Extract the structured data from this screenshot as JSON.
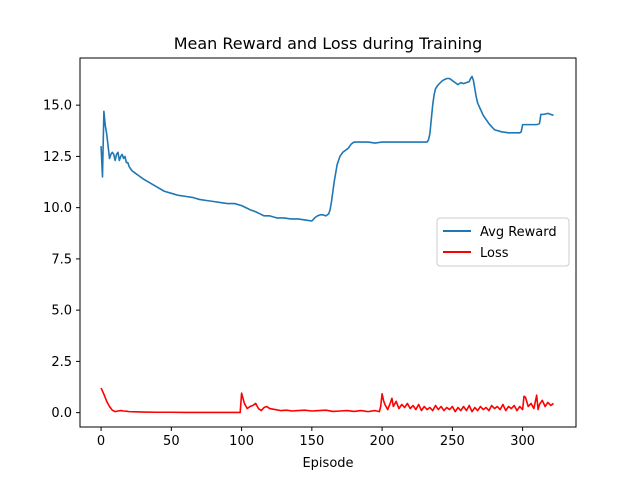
{
  "chart_data": {
    "type": "line",
    "title": "Mean Reward and Loss during Training",
    "xlabel": "Episode",
    "ylabel": "",
    "xlim": [
      -15,
      338
    ],
    "ylim": [
      -0.7,
      17.3
    ],
    "xticks": [
      0,
      50,
      100,
      150,
      200,
      250,
      300
    ],
    "yticks": [
      0.0,
      2.5,
      5.0,
      7.5,
      10.0,
      12.5,
      15.0
    ],
    "xtick_labels": [
      "0",
      "50",
      "100",
      "150",
      "200",
      "250",
      "300"
    ],
    "ytick_labels": [
      "0.0",
      "2.5",
      "5.0",
      "7.5",
      "10.0",
      "12.5",
      "15.0"
    ],
    "grid": false,
    "legend_position": "center-right",
    "series": [
      {
        "name": "Avg Reward",
        "color": "#1f77b4",
        "x": [
          0,
          1,
          2,
          3,
          4,
          5,
          6,
          7,
          8,
          9,
          10,
          11,
          12,
          13,
          14,
          15,
          16,
          17,
          18,
          19,
          20,
          22,
          24,
          26,
          28,
          30,
          35,
          40,
          45,
          50,
          55,
          60,
          65,
          70,
          75,
          80,
          85,
          90,
          95,
          100,
          103,
          106,
          110,
          113,
          116,
          120,
          125,
          130,
          135,
          140,
          145,
          150,
          152,
          154,
          156,
          158,
          160,
          162,
          163,
          164,
          165,
          166,
          167,
          168,
          170,
          172,
          174,
          176,
          178,
          180,
          185,
          190,
          195,
          200,
          205,
          210,
          215,
          220,
          225,
          230,
          232,
          233,
          234,
          235,
          236,
          237,
          238,
          240,
          243,
          246,
          248,
          250,
          252,
          254,
          256,
          258,
          260,
          262,
          263,
          264,
          265,
          266,
          267,
          268,
          270,
          272,
          274,
          276,
          278,
          280,
          285,
          290,
          295,
          298,
          299,
          300,
          305,
          310,
          312,
          313,
          315,
          318,
          320,
          322
        ],
        "y": [
          13.0,
          11.5,
          14.7,
          14.0,
          13.6,
          13.0,
          12.4,
          12.6,
          12.7,
          12.6,
          12.3,
          12.6,
          12.7,
          12.3,
          12.5,
          12.6,
          12.4,
          12.5,
          12.2,
          12.2,
          12.0,
          11.8,
          11.7,
          11.6,
          11.5,
          11.4,
          11.2,
          11.0,
          10.8,
          10.7,
          10.6,
          10.55,
          10.5,
          10.4,
          10.35,
          10.3,
          10.25,
          10.2,
          10.2,
          10.1,
          10.0,
          9.9,
          9.8,
          9.7,
          9.6,
          9.6,
          9.5,
          9.5,
          9.45,
          9.45,
          9.4,
          9.35,
          9.5,
          9.6,
          9.65,
          9.65,
          9.6,
          9.7,
          9.9,
          10.3,
          10.8,
          11.3,
          11.7,
          12.1,
          12.5,
          12.7,
          12.8,
          12.9,
          13.1,
          13.2,
          13.2,
          13.2,
          13.15,
          13.2,
          13.2,
          13.2,
          13.2,
          13.2,
          13.2,
          13.2,
          13.2,
          13.3,
          13.6,
          14.3,
          15.0,
          15.5,
          15.8,
          16.0,
          16.2,
          16.3,
          16.3,
          16.2,
          16.1,
          16.0,
          16.1,
          16.05,
          16.1,
          16.15,
          16.3,
          16.4,
          16.2,
          15.8,
          15.4,
          15.1,
          14.8,
          14.5,
          14.3,
          14.1,
          13.95,
          13.8,
          13.7,
          13.65,
          13.65,
          13.65,
          13.7,
          14.05,
          14.05,
          14.05,
          14.1,
          14.55,
          14.55,
          14.6,
          14.55,
          14.5
        ]
      },
      {
        "name": "Loss",
        "color": "#ff0000",
        "x": [
          0,
          2,
          4,
          6,
          8,
          10,
          12,
          14,
          16,
          18,
          20,
          25,
          30,
          40,
          50,
          60,
          70,
          80,
          90,
          99,
          100,
          101,
          102,
          104,
          106,
          108,
          110,
          112,
          114,
          116,
          118,
          120,
          124,
          128,
          132,
          136,
          140,
          145,
          150,
          155,
          160,
          165,
          170,
          175,
          180,
          185,
          190,
          195,
          198,
          199,
          200,
          201,
          202,
          204,
          206,
          207,
          208,
          210,
          212,
          214,
          216,
          218,
          220,
          222,
          224,
          226,
          228,
          230,
          232,
          234,
          236,
          238,
          240,
          242,
          244,
          246,
          248,
          250,
          252,
          254,
          256,
          258,
          260,
          262,
          264,
          266,
          268,
          270,
          272,
          274,
          276,
          278,
          280,
          282,
          284,
          286,
          288,
          290,
          292,
          294,
          296,
          298,
          300,
          301,
          302,
          304,
          306,
          308,
          310,
          311,
          312,
          314,
          316,
          318,
          320,
          322
        ],
        "y": [
          1.2,
          0.9,
          0.55,
          0.3,
          0.12,
          0.05,
          0.08,
          0.1,
          0.08,
          0.07,
          0.05,
          0.04,
          0.03,
          0.02,
          0.02,
          0.01,
          0.01,
          0.01,
          0.01,
          0.01,
          0.95,
          0.7,
          0.45,
          0.2,
          0.3,
          0.35,
          0.45,
          0.2,
          0.1,
          0.25,
          0.3,
          0.2,
          0.15,
          0.1,
          0.12,
          0.08,
          0.1,
          0.12,
          0.08,
          0.1,
          0.12,
          0.06,
          0.08,
          0.1,
          0.06,
          0.1,
          0.05,
          0.1,
          0.05,
          0.3,
          0.92,
          0.6,
          0.4,
          0.15,
          0.5,
          0.7,
          0.3,
          0.55,
          0.2,
          0.4,
          0.25,
          0.45,
          0.2,
          0.35,
          0.15,
          0.4,
          0.1,
          0.3,
          0.15,
          0.25,
          0.1,
          0.35,
          0.15,
          0.3,
          0.1,
          0.25,
          0.15,
          0.3,
          0.05,
          0.25,
          0.1,
          0.3,
          0.1,
          0.35,
          0.05,
          0.25,
          0.1,
          0.3,
          0.15,
          0.25,
          0.1,
          0.35,
          0.2,
          0.3,
          0.15,
          0.4,
          0.1,
          0.3,
          0.2,
          0.35,
          0.1,
          0.3,
          0.15,
          0.8,
          0.75,
          0.3,
          0.45,
          0.2,
          0.85,
          0.15,
          0.4,
          0.6,
          0.3,
          0.5,
          0.35,
          0.45
        ]
      }
    ]
  }
}
